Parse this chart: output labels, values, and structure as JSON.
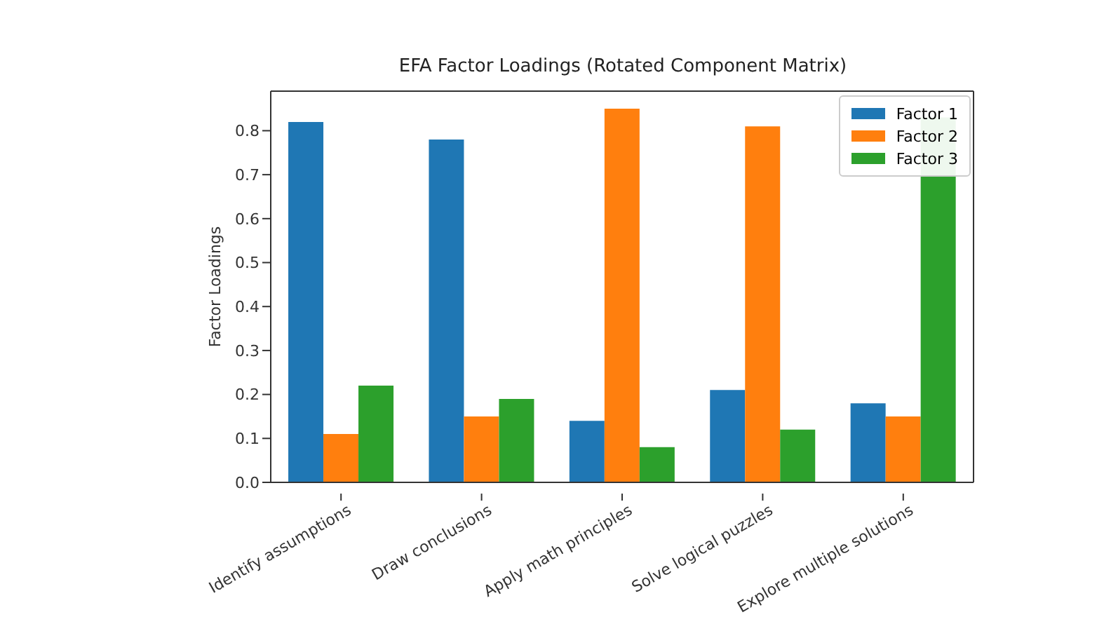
{
  "chart_data": {
    "type": "bar",
    "title": "EFA Factor Loadings (Rotated Component Matrix)",
    "ylabel": "Factor Loadings",
    "categories": [
      "Identify assumptions",
      "Draw conclusions",
      "Apply math principles",
      "Solve logical puzzles",
      "Explore multiple solutions"
    ],
    "series": [
      {
        "name": "Factor 1",
        "color": "#1f77b4",
        "values": [
          0.82,
          0.78,
          0.14,
          0.21,
          0.18
        ]
      },
      {
        "name": "Factor 2",
        "color": "#ff7f0e",
        "values": [
          0.11,
          0.15,
          0.85,
          0.81,
          0.15
        ]
      },
      {
        "name": "Factor 3",
        "color": "#2ca02c",
        "values": [
          0.22,
          0.19,
          0.08,
          0.12,
          0.83
        ]
      }
    ],
    "ylim": [
      0,
      0.89
    ],
    "yticks": [
      {
        "value": 0,
        "label": "0.0"
      },
      0.1,
      0.2,
      0.3,
      0.4,
      0.5,
      0.6,
      0.7,
      0.8
    ],
    "grid": false,
    "legend": "top right"
  }
}
